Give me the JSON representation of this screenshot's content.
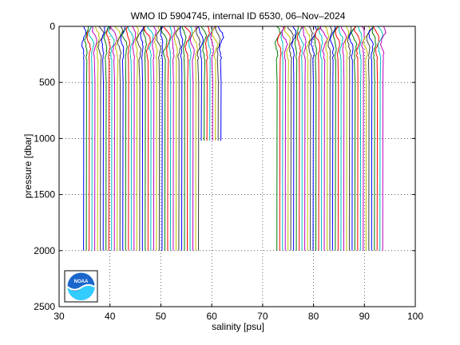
{
  "chart_data": {
    "type": "line",
    "title": "WMO ID 5904745, internal ID 6530, 06–Nov–2024",
    "xlabel": "salinity [psu]",
    "ylabel": "pressure [dbar]",
    "xlim": [
      30,
      100
    ],
    "ylim": [
      2500,
      0
    ],
    "y_reversed": true,
    "xticks": [
      "30",
      "40",
      "50",
      "60",
      "70",
      "80",
      "90",
      "100"
    ],
    "yticks": [
      "0",
      "500",
      "1000",
      "1500",
      "2000",
      "2500"
    ],
    "grid": "dotted",
    "description_of_series": "waterfall of salinity profiles, each offset in x",
    "profile_groups": [
      {
        "x_start": 34.8,
        "x_end": 61.8,
        "count": 50,
        "max_pressure": 2000,
        "short_profiles_from": 57.8,
        "short_max_pressure": 1020
      },
      {
        "x_start": 72.8,
        "x_end": 93.6,
        "count": 39,
        "max_pressure": 2000
      }
    ],
    "line_colors": [
      "#0000ff",
      "#008000",
      "#ff0000",
      "#00bfbf",
      "#bf00bf",
      "#bfbf00",
      "#404040"
    ]
  },
  "logo": {
    "name": "noaa-logo",
    "text": "NOAA"
  }
}
